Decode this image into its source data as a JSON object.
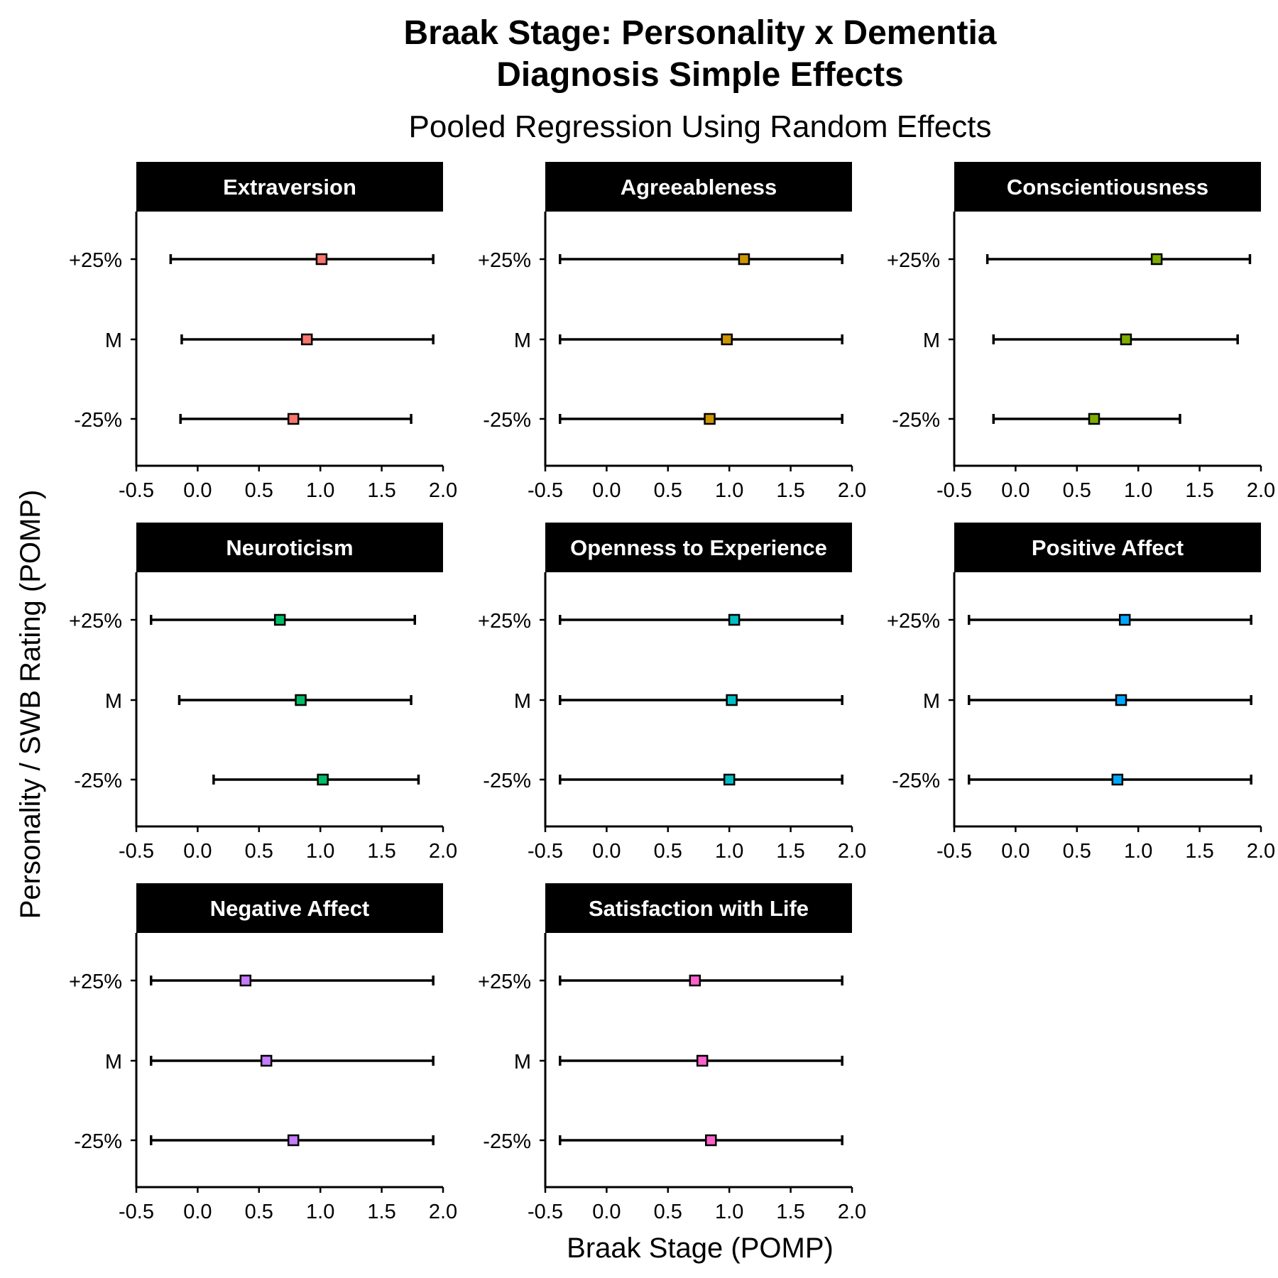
{
  "chart_data": {
    "type": "forest",
    "title_lines": [
      "Braak Stage: Personality x Dementia",
      "Diagnosis Simple Effects"
    ],
    "subtitle": "Pooled Regression Using Random Effects",
    "xlabel": "Braak Stage (POMP)",
    "ylabel": "Personality / SWB Rating (POMP)",
    "xlim": [
      -0.5,
      2.0
    ],
    "xticks": [
      -0.5,
      0.0,
      0.5,
      1.0,
      1.5,
      2.0
    ],
    "xtick_labels": [
      "-0.5",
      "0.0",
      "0.5",
      "1.0",
      "1.5",
      "2.0"
    ],
    "levels": [
      "+25%",
      "M",
      "-25%"
    ],
    "panels": [
      {
        "name": "Extraversion",
        "color": "#F8766D",
        "estimates": [
          1.01,
          0.89,
          0.78
        ],
        "lower": [
          -0.22,
          -0.13,
          -0.14
        ],
        "upper": [
          1.92,
          1.92,
          1.74
        ]
      },
      {
        "name": "Agreeableness",
        "color": "#CD9600",
        "estimates": [
          1.12,
          0.98,
          0.84
        ],
        "lower": [
          -0.38,
          -0.38,
          -0.38
        ],
        "upper": [
          1.92,
          1.92,
          1.92
        ]
      },
      {
        "name": "Conscientiousness",
        "color": "#7CAE00",
        "estimates": [
          1.15,
          0.9,
          0.64
        ],
        "lower": [
          -0.23,
          -0.18,
          -0.18
        ],
        "upper": [
          1.91,
          1.81,
          1.34
        ]
      },
      {
        "name": "Neuroticism",
        "color": "#00BE67",
        "estimates": [
          0.67,
          0.84,
          1.02
        ],
        "lower": [
          -0.38,
          -0.15,
          0.13
        ],
        "upper": [
          1.77,
          1.74,
          1.8
        ]
      },
      {
        "name": "Openness to Experience",
        "color": "#00BFC4",
        "estimates": [
          1.04,
          1.02,
          1.0
        ],
        "lower": [
          -0.38,
          -0.38,
          -0.38
        ],
        "upper": [
          1.92,
          1.92,
          1.92
        ]
      },
      {
        "name": "Positive Affect",
        "color": "#00A9FF",
        "estimates": [
          0.89,
          0.86,
          0.83
        ],
        "lower": [
          -0.38,
          -0.38,
          -0.38
        ],
        "upper": [
          1.92,
          1.92,
          1.92
        ]
      },
      {
        "name": "Negative Affect",
        "color": "#C77CFF",
        "estimates": [
          0.39,
          0.56,
          0.78
        ],
        "lower": [
          -0.38,
          -0.38,
          -0.38
        ],
        "upper": [
          1.92,
          1.92,
          1.92
        ]
      },
      {
        "name": "Satisfaction with Life",
        "color": "#FF61CC",
        "estimates": [
          0.72,
          0.78,
          0.85
        ],
        "lower": [
          -0.38,
          -0.38,
          -0.38
        ],
        "upper": [
          1.92,
          1.92,
          1.92
        ]
      }
    ]
  }
}
